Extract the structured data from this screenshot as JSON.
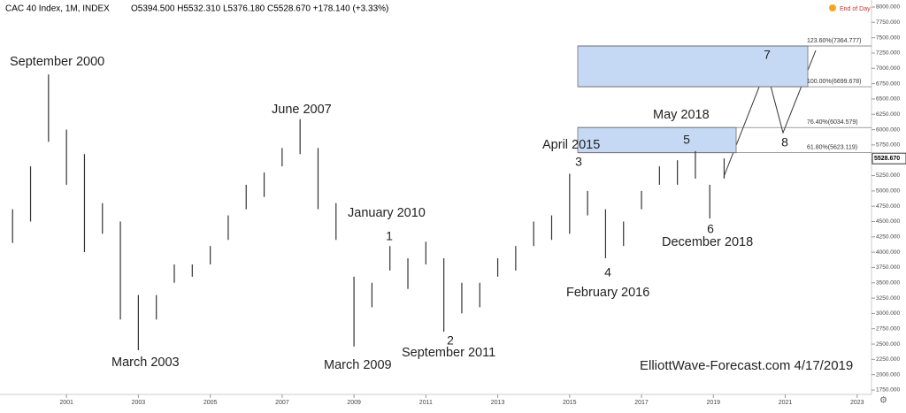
{
  "chart_data": {
    "type": "ohlc",
    "title": "CAC 40 Index, 1M, INDEX",
    "legend_text": "O5394.500 H5532.310 L5376.180 C5528.670 +178.140 (+3.33%)",
    "status": "End of Day",
    "watermark": "ElliottWave-Forecast.com 4/17/2019",
    "last_price": {
      "value": 5528.67,
      "label": "5528.670"
    },
    "x": [
      1999.5,
      2000,
      2000.5,
      2001,
      2001.5,
      2002,
      2002.5,
      2003,
      2003.5,
      2004,
      2004.5,
      2005,
      2005.5,
      2006,
      2006.5,
      2007,
      2007.5,
      2008,
      2008.5,
      2009,
      2009.5,
      2010,
      2010.5,
      2011,
      2011.5,
      2012,
      2012.5,
      2013,
      2013.5,
      2014,
      2014.5,
      2015,
      2015.5,
      2016,
      2016.5,
      2017,
      2017.5,
      2018,
      2018.5,
      2018.9,
      2019.3
    ],
    "high": [
      4700,
      5400,
      6900,
      6000,
      5600,
      4800,
      4500,
      3300,
      3300,
      3800,
      3800,
      4100,
      4600,
      5100,
      5300,
      5700,
      6170,
      5700,
      4800,
      3600,
      3500,
      4100,
      3900,
      4170,
      3900,
      3500,
      3500,
      3900,
      4100,
      4500,
      4600,
      5280,
      5000,
      4700,
      4500,
      5000,
      5400,
      5500,
      5650,
      5100,
      5530
    ],
    "low": [
      4150,
      4500,
      5800,
      5100,
      4000,
      4300,
      2900,
      2400,
      2900,
      3500,
      3600,
      3800,
      4200,
      4700,
      4900,
      5400,
      5600,
      4700,
      4200,
      2460,
      3100,
      3700,
      3400,
      3800,
      2700,
      3000,
      3100,
      3600,
      3700,
      4100,
      4200,
      4300,
      4600,
      3900,
      4100,
      4700,
      5100,
      5100,
      5200,
      4550,
      5200
    ],
    "color": "#333333",
    "xlim": [
      1999.15,
      2023.4
    ],
    "ylim": [
      1750,
      8000
    ],
    "xticks": [
      2001,
      2003,
      2005,
      2007,
      2009,
      2011,
      2013,
      2015,
      2017,
      2019,
      2021,
      2023
    ],
    "yticks": [
      {
        "value": 1750,
        "label": "1750.000"
      },
      {
        "value": 2000,
        "label": "2000.000"
      },
      {
        "value": 2250,
        "label": "2250.000"
      },
      {
        "value": 2500,
        "label": "2500.000"
      },
      {
        "value": 2750,
        "label": "2750.000"
      },
      {
        "value": 3000,
        "label": "3000.000"
      },
      {
        "value": 3250,
        "label": "3250.000"
      },
      {
        "value": 3500,
        "label": "3500.000"
      },
      {
        "value": 3750,
        "label": "3750.000"
      },
      {
        "value": 4000,
        "label": "4000.000"
      },
      {
        "value": 4250,
        "label": "4250.000"
      },
      {
        "value": 4500,
        "label": "4500.000"
      },
      {
        "value": 4750,
        "label": "4750.000"
      },
      {
        "value": 5000,
        "label": "5000.000"
      },
      {
        "value": 5250,
        "label": "5250.000"
      },
      {
        "value": 5500,
        "label": "5500.000"
      },
      {
        "value": 5750,
        "label": "5750.000"
      },
      {
        "value": 6000,
        "label": "6000.000"
      },
      {
        "value": 6250,
        "label": "6250.000"
      },
      {
        "value": 6500,
        "label": "6500.000"
      },
      {
        "value": 6750,
        "label": "6750.000"
      },
      {
        "value": 7000,
        "label": "7000.000"
      },
      {
        "value": 7250,
        "label": "7250.000"
      },
      {
        "value": 7500,
        "label": "7500.000"
      },
      {
        "value": 7750,
        "label": "7750.000"
      },
      {
        "value": 8000,
        "label": "8000.000"
      }
    ],
    "fib_levels": [
      {
        "value": 7364.777,
        "label": "123.60%(7364.777)"
      },
      {
        "value": 6699.678,
        "label": "100.00%(6699.678)"
      },
      {
        "value": 6034.579,
        "label": "76.40%(6034.579)"
      },
      {
        "value": 5623.119,
        "label": "61.80%(5623.119)"
      }
    ],
    "annotations": [
      "September 2000",
      "March 2003",
      "June 2007",
      "March 2009",
      "January 2010",
      "1",
      "September 2011",
      "2",
      "April 2015",
      "3",
      "February 2016",
      "4",
      "May 2018",
      "5",
      "December 2018",
      "6",
      "7",
      "8"
    ]
  }
}
